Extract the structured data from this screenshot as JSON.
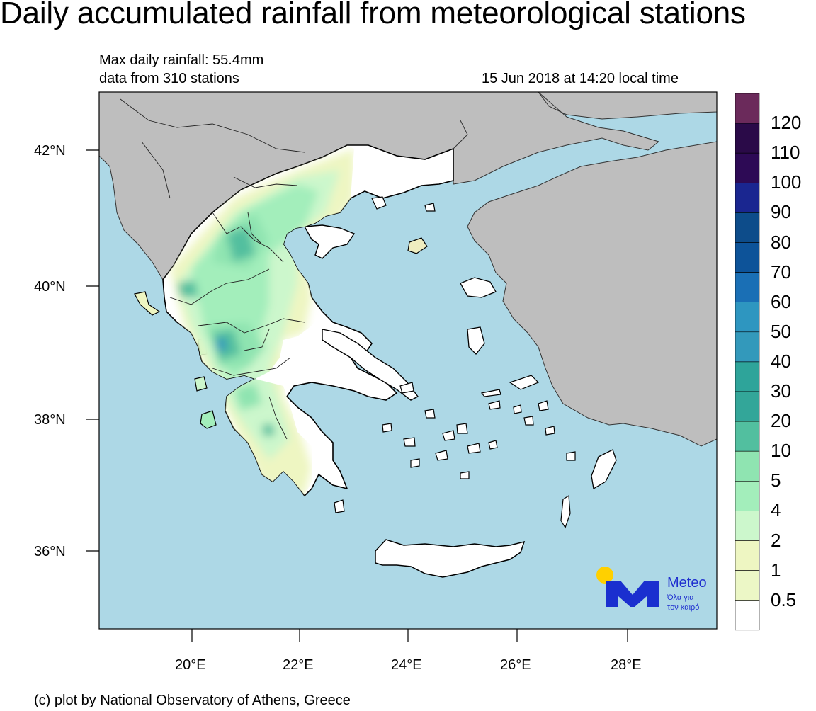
{
  "title": "Daily accumulated rainfall from meteorological stations",
  "max_rainfall": "Max daily rainfall: 55.4mm",
  "stations": "data from 310 stations",
  "timestamp": "15 Jun 2018 at 14:20 local time",
  "footer": "(c) plot by National Observatory of Athens, Greece",
  "lat_ticks": [
    "42°N",
    "40°N",
    "38°N",
    "36°N"
  ],
  "lon_ticks": [
    "20°E",
    "22°E",
    "24°E",
    "26°E",
    "28°E"
  ],
  "legend": {
    "labels": [
      "120",
      "110",
      "100",
      "90",
      "80",
      "70",
      "60",
      "50",
      "40",
      "30",
      "20",
      "10",
      "5",
      "4",
      "2",
      "1",
      "0.5"
    ],
    "colors": [
      "#6b2a5b",
      "#2a0a48",
      "#2d0a55",
      "#1a2690",
      "#0d4c8a",
      "#0d5399",
      "#1a6fb5",
      "#2e96c0",
      "#3399bb",
      "#2ea49a",
      "#33a699",
      "#52bf9f",
      "#8fe4b1",
      "#a3eebb",
      "#ccf7cc",
      "#eef6c2",
      "#ecf7c6",
      "#ffffff"
    ]
  },
  "logo": {
    "name": "Meteo",
    "tagline1": "Όλα για",
    "tagline2": "τον καιρό"
  },
  "colors": {
    "sea": "#add8e6",
    "land_foreign": "#bebebe",
    "greece_dry": "#ffffff"
  }
}
